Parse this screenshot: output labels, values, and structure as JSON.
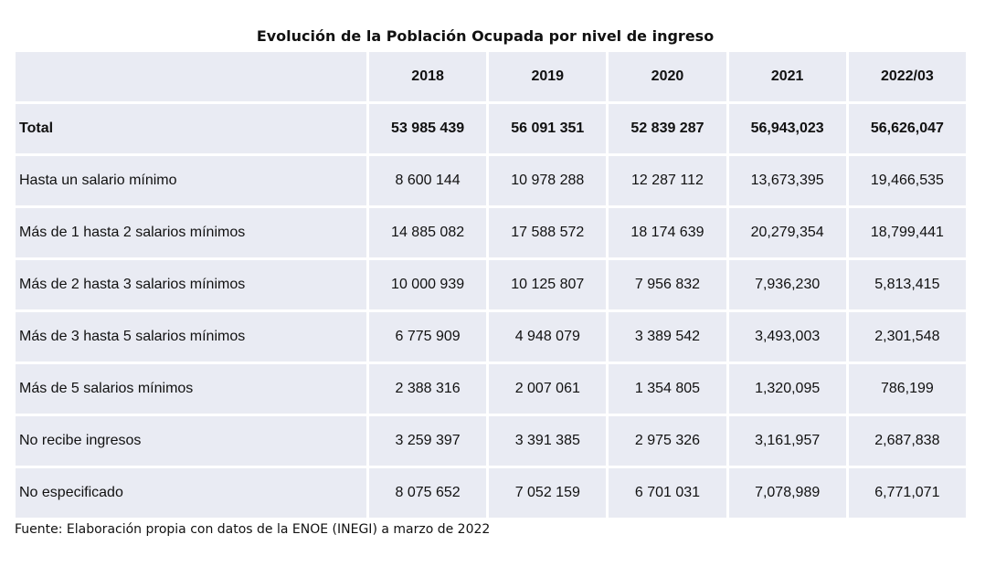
{
  "title": "Evolución de la Población Ocupada por nivel de ingreso",
  "table": {
    "columns": [
      "2018",
      "2019",
      "2020",
      "2021",
      "2022/03"
    ],
    "rows": [
      {
        "label": "Total",
        "values": [
          "53 985 439",
          "56 091 351",
          "52 839 287",
          "56,943,023",
          "56,626,047"
        ]
      },
      {
        "label": "Hasta un salario mínimo",
        "values": [
          "8 600 144",
          "10 978 288",
          "12 287 112",
          "13,673,395",
          "19,466,535"
        ]
      },
      {
        "label": "Más de 1 hasta 2 salarios mínimos",
        "values": [
          "14 885 082",
          "17 588 572",
          "18 174 639",
          "20,279,354",
          "18,799,441"
        ]
      },
      {
        "label": "Más de 2 hasta 3 salarios mínimos",
        "values": [
          "10 000 939",
          "10 125 807",
          "7 956 832",
          "7,936,230",
          "5,813,415"
        ]
      },
      {
        "label": "Más de 3 hasta 5 salarios mínimos",
        "values": [
          "6 775 909",
          "4 948 079",
          "3 389 542",
          "3,493,003",
          "2,301,548"
        ]
      },
      {
        "label": "Más de 5 salarios mínimos",
        "values": [
          "2 388 316",
          "2 007 061",
          "1 354 805",
          "1,320,095",
          "786,199"
        ]
      },
      {
        "label": "No recibe ingresos",
        "values": [
          "3 259 397",
          "3 391 385",
          "2 975 326",
          "3,161,957",
          "2,687,838"
        ]
      },
      {
        "label": "No especificado",
        "values": [
          "8 075 652",
          "7 052 159",
          "6 701 031",
          "7,078,989",
          "6,771,071"
        ]
      }
    ]
  },
  "source": "Fuente: Elaboración propia con datos de la ENOE (INEGI) a marzo de 2022"
}
